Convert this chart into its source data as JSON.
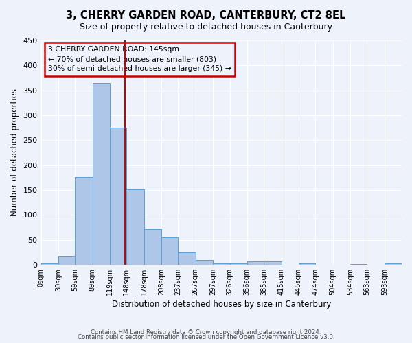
{
  "title": "3, CHERRY GARDEN ROAD, CANTERBURY, CT2 8EL",
  "subtitle": "Size of property relative to detached houses in Canterbury",
  "xlabel": "Distribution of detached houses by size in Canterbury",
  "ylabel": "Number of detached properties",
  "bar_color": "#aec6e8",
  "bar_edge_color": "#5a9fd4",
  "background_color": "#eef2fb",
  "grid_color": "#ffffff",
  "vline_value": 145,
  "vline_color": "#cc0000",
  "annotation_line1": "3 CHERRY GARDEN ROAD: 145sqm",
  "annotation_line2": "← 70% of detached houses are smaller (803)",
  "annotation_line3": "30% of semi-detached houses are larger (345) →",
  "annotation_box_color": "#cc0000",
  "bin_edges": [
    0,
    30,
    59,
    89,
    119,
    148,
    178,
    208,
    237,
    267,
    297,
    326,
    356,
    385,
    415,
    445,
    474,
    504,
    534,
    563,
    593,
    623
  ],
  "bin_labels": [
    "0sqm",
    "30sqm",
    "59sqm",
    "89sqm",
    "119sqm",
    "148sqm",
    "178sqm",
    "208sqm",
    "237sqm",
    "267sqm",
    "297sqm",
    "326sqm",
    "356sqm",
    "385sqm",
    "415sqm",
    "445sqm",
    "474sqm",
    "504sqm",
    "534sqm",
    "563sqm",
    "593sqm"
  ],
  "bar_heights": [
    3,
    18,
    176,
    365,
    275,
    151,
    71,
    55,
    24,
    10,
    3,
    2,
    6,
    6,
    0,
    2,
    0,
    0,
    1,
    0,
    2
  ],
  "ylim": [
    0,
    450
  ],
  "yticks": [
    0,
    50,
    100,
    150,
    200,
    250,
    300,
    350,
    400,
    450
  ],
  "footer1": "Contains HM Land Registry data © Crown copyright and database right 2024.",
  "footer2": "Contains public sector information licensed under the Open Government Licence v3.0."
}
